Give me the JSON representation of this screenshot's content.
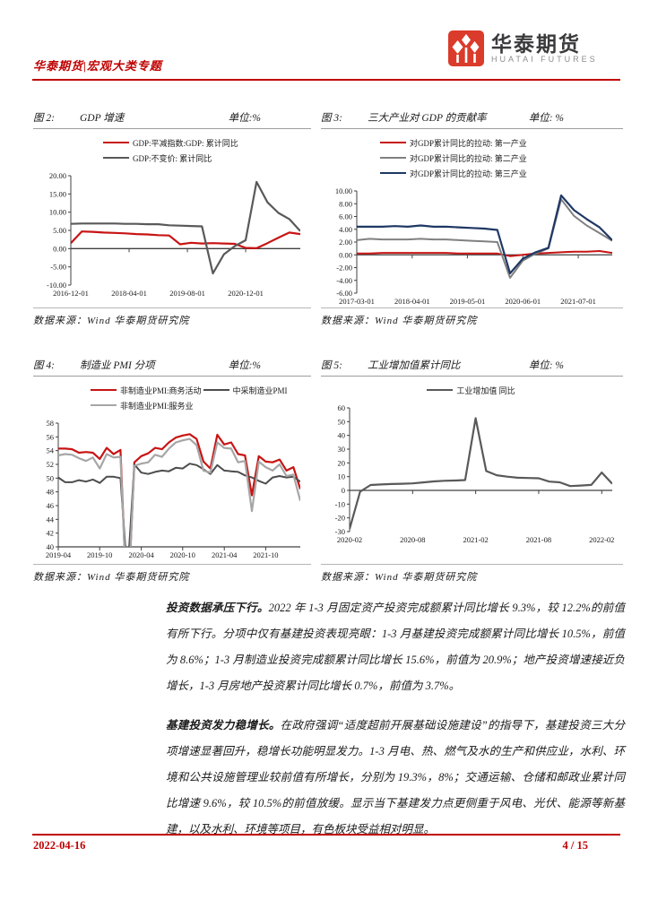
{
  "theme": {
    "accent_red": "#C00000",
    "rule_gray": "#9e9e9e"
  },
  "header": {
    "breadcrumb": "华泰期货|宏观大类专题",
    "logo_cn": "华泰期货",
    "logo_en": "HUATAI FUTURES"
  },
  "footer": {
    "date": "2022-04-16",
    "page_info": "4 / 15"
  },
  "paragraphs": [
    {
      "lead": "投资数据承压下行。",
      "text": "2022 年 1-3 月固定资产投资完成额累计同比增长 9.3%，较 12.2%的前值有所下行。分项中仅有基建投资表现亮眼：1-3 月基建投资完成额累计同比增长 10.5%，前值为 8.6%；1-3 月制造业投资完成额累计同比增长 15.6%，前值为 20.9%；地产投资增速接近负增长，1-3 月房地产投资累计同比增长 0.7%，前值为 3.7%。"
    },
    {
      "lead": "基建投资发力稳增长。",
      "text": "在政府强调“适度超前开展基础设施建设”的指导下，基建投资三大分项增速显著回升，稳增长功能明显发力。1-3 月电、热、燃气及水的生产和供应业，水利、环境和公共设施管理业较前值有所增长，分别为 19.3%，8%；交通运输、仓储和邮政业累计同比增速 9.6%，较 10.5%的前值放缓。显示当下基建发力点更侧重于风电、光伏、能源等新基建，以及水利、环境等项目，有色板块受益相对明显。"
    }
  ],
  "chart_data": [
    {
      "id": "fig2",
      "type": "line",
      "fig_label": "图 2:",
      "title": "GDP 增速",
      "unit": "单位:%",
      "source": "数据来源：Wind 华泰期货研究院",
      "ylim": [
        -10,
        20
      ],
      "baseline": 0,
      "ml": 42,
      "y_ticks": [
        "20.00",
        "15.00",
        "10.00",
        "5.00",
        "0.00",
        "-5.00",
        "-10.00"
      ],
      "x_ticks": [
        {
          "label": "2016-12-01",
          "pos": 0.0
        },
        {
          "label": "2018-04-01",
          "pos": 0.254
        },
        {
          "label": "2019-08-01",
          "pos": 0.508
        },
        {
          "label": "2020-12-01",
          "pos": 0.762
        }
      ],
      "legend": {
        "rows": [
          [
            0
          ],
          [
            1
          ]
        ],
        "align": "left",
        "indent": 78
      },
      "series": [
        {
          "name": "GDP:平减指数:GDP: 累计同比",
          "color": "#C81414",
          "lw": 2.2,
          "values": [
            1.5,
            4.7,
            4.6,
            4.4,
            4.3,
            4.2,
            4.0,
            3.9,
            3.7,
            3.6,
            1.2,
            1.6,
            1.4,
            1.5,
            1.4,
            1.3,
            0.2,
            0.1,
            1.5,
            3.0,
            4.4,
            4.0
          ]
        },
        {
          "name": "GDP:不变价: 累计同比",
          "color": "#595959",
          "lw": 2.2,
          "values": [
            6.8,
            6.9,
            6.9,
            6.9,
            6.9,
            6.8,
            6.8,
            6.7,
            6.7,
            6.4,
            6.3,
            6.2,
            6.1,
            -6.8,
            -1.6,
            0.7,
            2.3,
            18.3,
            12.7,
            9.8,
            8.1,
            4.8
          ]
        }
      ]
    },
    {
      "id": "fig3",
      "type": "line",
      "fig_label": "图 3:",
      "title": "三大产业对 GDP 的贡献率",
      "unit": "单位: %",
      "source": "数据来源：Wind 华泰期货研究院",
      "ylim": [
        -6,
        10
      ],
      "baseline": 0,
      "ml": 40,
      "y_ticks": [
        "10.00",
        "8.00",
        "6.00",
        "4.00",
        "2.00",
        "0.00",
        "-2.00",
        "-4.00",
        "-6.00"
      ],
      "x_ticks": [
        {
          "label": "2017-03-01",
          "pos": 0.0
        },
        {
          "label": "2018-04-01",
          "pos": 0.217
        },
        {
          "label": "2019-05-01",
          "pos": 0.433
        },
        {
          "label": "2020-06-01",
          "pos": 0.65
        },
        {
          "label": "2021-07-01",
          "pos": 0.867
        }
      ],
      "legend": {
        "rows": [
          [
            0
          ],
          [
            1
          ],
          [
            2
          ]
        ],
        "align": "left",
        "indent": 66
      },
      "series": [
        {
          "name": "对GDP累计同比的拉动: 第一产业",
          "color": "#C81414",
          "lw": 2,
          "values": [
            0.2,
            0.2,
            0.3,
            0.3,
            0.3,
            0.3,
            0.3,
            0.3,
            0.2,
            0.2,
            0.2,
            0.2,
            -0.2,
            0.0,
            0.2,
            0.3,
            0.4,
            0.5,
            0.5,
            0.6,
            0.3
          ]
        },
        {
          "name": "对GDP累计同比的拉动: 第二产业",
          "color": "#808080",
          "lw": 2,
          "values": [
            2.3,
            2.5,
            2.4,
            2.4,
            2.4,
            2.5,
            2.4,
            2.4,
            2.3,
            2.2,
            2.1,
            2.0,
            -3.6,
            -0.9,
            0.2,
            1.0,
            8.7,
            6.1,
            4.6,
            3.4,
            2.2
          ]
        },
        {
          "name": "对GDP累计同比的拉动: 第三产业",
          "color": "#1F3864",
          "lw": 2.2,
          "values": [
            4.4,
            4.4,
            4.4,
            4.5,
            4.4,
            4.6,
            4.4,
            4.4,
            4.3,
            4.2,
            4.1,
            3.9,
            -2.9,
            -0.6,
            0.4,
            1.1,
            9.3,
            7.0,
            5.6,
            4.3,
            2.3
          ]
        }
      ]
    },
    {
      "id": "fig4",
      "type": "line",
      "fig_label": "图 4:",
      "title": "制造业 PMI 分项",
      "unit": "单位:%",
      "source": "数据来源：Wind 华泰期货研究院",
      "ylim": [
        40,
        58
      ],
      "baseline": 40,
      "ml": 28,
      "y_ticks": [
        "58",
        "56",
        "54",
        "52",
        "50",
        "48",
        "46",
        "44",
        "42",
        "40"
      ],
      "x_ticks": [
        {
          "label": "2019-04",
          "pos": 0.0
        },
        {
          "label": "2019-10",
          "pos": 0.171
        },
        {
          "label": "2020-04",
          "pos": 0.343
        },
        {
          "label": "2020-10",
          "pos": 0.514
        },
        {
          "label": "2021-04",
          "pos": 0.686
        },
        {
          "label": "2021-10",
          "pos": 0.857
        }
      ],
      "legend": {
        "rows": [
          [
            0,
            1
          ],
          [
            2
          ]
        ],
        "align": "left",
        "indent": 64
      },
      "series": [
        {
          "name": "非制造业PMI:商务活动",
          "color": "#C81414",
          "lw": 2.2,
          "values": [
            54.3,
            54.3,
            54.2,
            53.7,
            53.8,
            53.7,
            52.8,
            54.4,
            53.5,
            54.1,
            29.6,
            52.3,
            53.2,
            53.6,
            54.4,
            54.2,
            55.2,
            55.9,
            56.2,
            56.4,
            55.7,
            52.4,
            51.4,
            56.3,
            54.9,
            55.2,
            53.5,
            53.3,
            47.5,
            53.2,
            52.4,
            52.3,
            52.7,
            51.1,
            51.6,
            48.4
          ]
        },
        {
          "name": "中采制造业PMI",
          "color": "#4D4D4D",
          "lw": 2,
          "values": [
            50.1,
            49.4,
            49.4,
            49.7,
            49.5,
            49.8,
            49.3,
            50.2,
            50.2,
            50.0,
            35.7,
            52.0,
            50.8,
            50.6,
            50.9,
            51.1,
            51.0,
            51.5,
            51.4,
            52.1,
            51.9,
            51.3,
            50.6,
            51.9,
            51.1,
            51.0,
            50.9,
            50.4,
            50.1,
            49.6,
            49.2,
            50.1,
            50.3,
            50.1,
            50.2,
            49.5
          ]
        },
        {
          "name": "非制造业PMI:服务业",
          "color": "#A6A6A6",
          "lw": 2.2,
          "values": [
            53.3,
            53.5,
            53.4,
            52.9,
            52.5,
            53.0,
            51.4,
            53.5,
            53.0,
            53.1,
            30.1,
            51.8,
            52.1,
            52.3,
            53.4,
            53.1,
            54.3,
            55.2,
            55.5,
            55.7,
            54.8,
            51.1,
            50.8,
            55.2,
            54.4,
            54.3,
            52.3,
            52.5,
            45.2,
            52.4,
            51.6,
            51.1,
            52.0,
            50.3,
            50.5,
            46.7
          ]
        }
      ]
    },
    {
      "id": "fig5",
      "type": "line",
      "fig_label": "图 5:",
      "title": "工业增加值累计同比",
      "unit": "单位: %",
      "source": "数据来源：Wind 华泰期货研究院",
      "ylim": [
        -30,
        60
      ],
      "baseline": 0,
      "ml": 32,
      "y_ticks": [
        "60",
        "50",
        "40",
        "30",
        "20",
        "10",
        "0",
        "-10",
        "-20",
        "-30"
      ],
      "x_ticks": [
        {
          "label": "2020-02",
          "pos": 0.0
        },
        {
          "label": "2020-08",
          "pos": 0.24
        },
        {
          "label": "2021-02",
          "pos": 0.48
        },
        {
          "label": "2021-08",
          "pos": 0.72
        },
        {
          "label": "2022-02",
          "pos": 0.96
        }
      ],
      "legend": {
        "rows": [
          [
            0
          ]
        ],
        "align": "center",
        "indent": 0
      },
      "series": [
        {
          "name": "工业增加值 同比",
          "color": "#595959",
          "lw": 2.2,
          "values": [
            -28,
            -1,
            3.9,
            4.3,
            4.6,
            4.8,
            5.1,
            5.8,
            6.5,
            7.0,
            7.2,
            7.5,
            52.5,
            14.1,
            11.0,
            10.0,
            9.2,
            9.0,
            8.8,
            6.4,
            5.9,
            3.1,
            3.5,
            4.0,
            13.0,
            4.8
          ]
        }
      ]
    }
  ]
}
